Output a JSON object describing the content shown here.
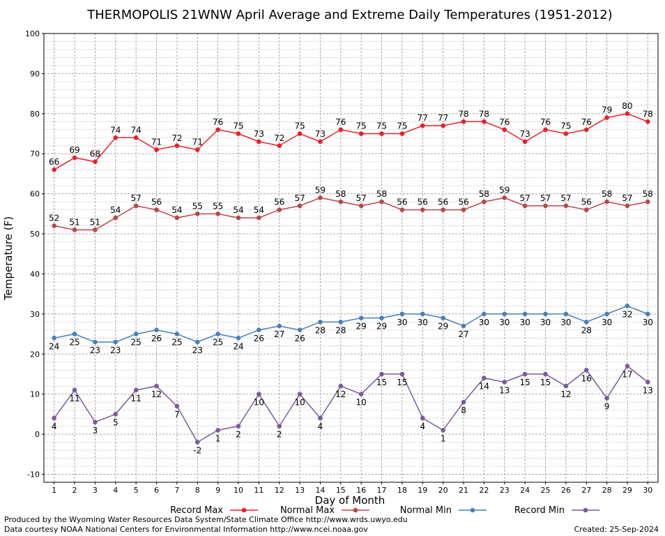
{
  "chart_data": {
    "type": "line",
    "title": "THERMOPOLIS 21WNW April Average and Extreme Daily Temperatures (1951-2012)",
    "xlabel": "Day of Month",
    "ylabel": "Temperature (F)",
    "ylim": [
      -12,
      100
    ],
    "yticks": [
      -10,
      0,
      10,
      20,
      30,
      40,
      50,
      60,
      70,
      80,
      90,
      100
    ],
    "x": [
      1,
      2,
      3,
      4,
      5,
      6,
      7,
      8,
      9,
      10,
      11,
      12,
      13,
      14,
      15,
      16,
      17,
      18,
      19,
      20,
      21,
      22,
      23,
      24,
      25,
      26,
      27,
      28,
      29,
      30
    ],
    "grid": true,
    "legend": "bottom",
    "series": [
      {
        "name": "Record Max",
        "color": "#e8202a",
        "label_pos": "above",
        "values": [
          66,
          69,
          68,
          74,
          74,
          71,
          72,
          71,
          76,
          75,
          73,
          72,
          75,
          73,
          76,
          75,
          75,
          75,
          77,
          77,
          78,
          78,
          76,
          73,
          76,
          75,
          76,
          79,
          80,
          78
        ]
      },
      {
        "name": "Normal Max",
        "color": "#b8474a",
        "label_pos": "above",
        "values": [
          52,
          51,
          51,
          54,
          57,
          56,
          54,
          55,
          55,
          54,
          54,
          56,
          57,
          59,
          58,
          57,
          58,
          56,
          56,
          56,
          56,
          58,
          59,
          57,
          57,
          57,
          56,
          58,
          57,
          58
        ]
      },
      {
        "name": "Normal Min",
        "color": "#4a7fb8",
        "label_pos": "below",
        "values": [
          24,
          25,
          23,
          23,
          25,
          26,
          25,
          23,
          25,
          24,
          26,
          27,
          26,
          28,
          28,
          29,
          29,
          30,
          30,
          29,
          27,
          30,
          30,
          30,
          30,
          30,
          28,
          30,
          32,
          30
        ]
      },
      {
        "name": "Record Min",
        "color": "#7a5a9e",
        "label_pos": "below",
        "values": [
          4,
          11,
          3,
          5,
          11,
          12,
          7,
          -2,
          1,
          2,
          10,
          2,
          10,
          4,
          12,
          10,
          15,
          15,
          4,
          1,
          8,
          14,
          13,
          15,
          15,
          12,
          16,
          9,
          17,
          13
        ]
      }
    ]
  },
  "footer": {
    "produced": "Produced by the Wyoming Water Resources Data System/State Climate Office http://www.wrds.uwyo.edu",
    "courtesy": "Data courtesy NOAA National Centers for Environmental Information http://www.ncei.noaa.gov",
    "created": "Created:  25-Sep-2024"
  }
}
